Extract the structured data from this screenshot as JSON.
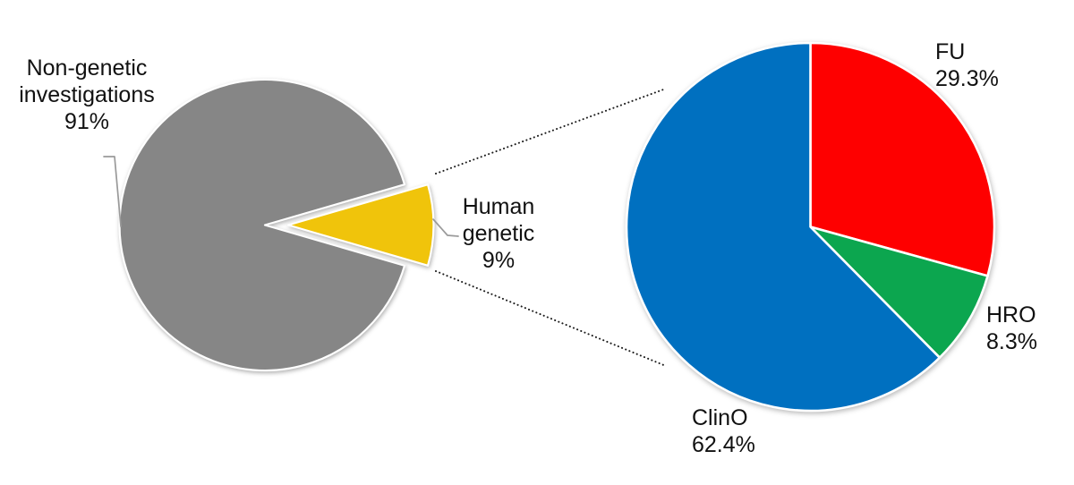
{
  "figure": {
    "description_colors": {
      "gray": "#868686",
      "gold": "#F0C40B",
      "red": "#FE0000",
      "green": "#0CA64F",
      "blue": "#0070C0"
    }
  },
  "chart_data": [
    {
      "type": "pie",
      "id": "overview",
      "start_angle_deg": 106.2,
      "legend_position": "outside-labels",
      "slices": [
        {
          "label": "Non-genetic investigations",
          "pct_label": "91%",
          "value": 91,
          "color": "#868686",
          "exploded": false
        },
        {
          "label": "Human genetic",
          "pct_label": "9%",
          "value": 9,
          "color": "#F0C40B",
          "exploded": true
        }
      ]
    },
    {
      "type": "pie",
      "id": "human-genetic-breakdown",
      "start_angle_deg": 0,
      "legend_position": "outside-labels",
      "slices": [
        {
          "label": "FU",
          "pct_label": "29.3%",
          "value": 29.3,
          "color": "#FE0000",
          "exploded": false
        },
        {
          "label": "HRO",
          "pct_label": "8.3%",
          "value": 8.3,
          "color": "#0CA64F",
          "exploded": false
        },
        {
          "label": "ClinO",
          "pct_label": "62.4%",
          "value": 62.4,
          "color": "#0070C0",
          "exploded": false
        }
      ]
    }
  ]
}
